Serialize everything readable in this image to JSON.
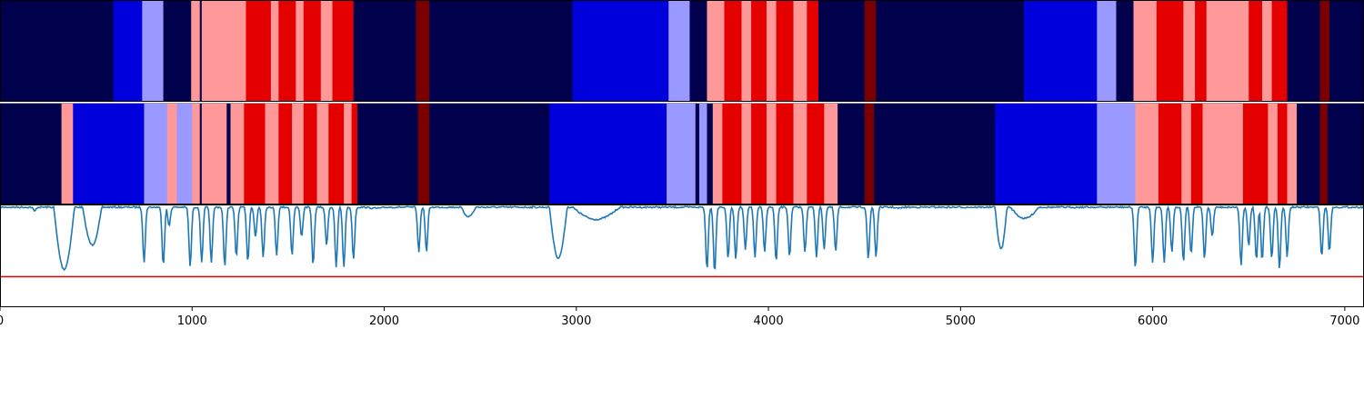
{
  "chart_data": [
    {
      "type": "heatmap",
      "name": "segmentation-track-top",
      "xlim": [
        0,
        7100
      ],
      "colors": {
        "navy": "#00004d",
        "blue": "#0000dd",
        "lightblue": "#9999ff",
        "pink": "#ff9999",
        "red": "#e50000",
        "darkred": "#7a0000"
      },
      "segments": [
        [
          0,
          590,
          "navy"
        ],
        [
          590,
          740,
          "blue"
        ],
        [
          740,
          850,
          "lightblue"
        ],
        [
          850,
          995,
          "navy"
        ],
        [
          995,
          1040,
          "pink"
        ],
        [
          1040,
          1050,
          "navy"
        ],
        [
          1050,
          1280,
          "pink"
        ],
        [
          1280,
          1410,
          "red"
        ],
        [
          1410,
          1450,
          "pink"
        ],
        [
          1450,
          1540,
          "red"
        ],
        [
          1540,
          1580,
          "pink"
        ],
        [
          1580,
          1670,
          "red"
        ],
        [
          1670,
          1730,
          "pink"
        ],
        [
          1730,
          1840,
          "red"
        ],
        [
          1840,
          2165,
          "navy"
        ],
        [
          2165,
          2235,
          "darkred"
        ],
        [
          2235,
          2980,
          "navy"
        ],
        [
          2980,
          3480,
          "blue"
        ],
        [
          3480,
          3590,
          "lightblue"
        ],
        [
          3590,
          3680,
          "navy"
        ],
        [
          3680,
          3770,
          "pink"
        ],
        [
          3770,
          3860,
          "red"
        ],
        [
          3860,
          3910,
          "pink"
        ],
        [
          3910,
          3990,
          "red"
        ],
        [
          3990,
          4040,
          "pink"
        ],
        [
          4040,
          4130,
          "red"
        ],
        [
          4130,
          4200,
          "pink"
        ],
        [
          4200,
          4260,
          "red"
        ],
        [
          4260,
          4500,
          "navy"
        ],
        [
          4500,
          4560,
          "darkred"
        ],
        [
          4560,
          5330,
          "navy"
        ],
        [
          5330,
          5710,
          "blue"
        ],
        [
          5710,
          5810,
          "lightblue"
        ],
        [
          5810,
          5900,
          "navy"
        ],
        [
          5900,
          6020,
          "pink"
        ],
        [
          6020,
          6160,
          "red"
        ],
        [
          6160,
          6220,
          "pink"
        ],
        [
          6220,
          6280,
          "red"
        ],
        [
          6280,
          6500,
          "pink"
        ],
        [
          6500,
          6570,
          "red"
        ],
        [
          6570,
          6620,
          "pink"
        ],
        [
          6620,
          6700,
          "red"
        ],
        [
          6700,
          6870,
          "navy"
        ],
        [
          6870,
          6920,
          "darkred"
        ],
        [
          6920,
          7100,
          "navy"
        ]
      ]
    },
    {
      "type": "heatmap",
      "name": "segmentation-track-middle",
      "xlim": [
        0,
        7100
      ],
      "segments": [
        [
          0,
          320,
          "navy"
        ],
        [
          320,
          380,
          "pink"
        ],
        [
          380,
          750,
          "blue"
        ],
        [
          750,
          870,
          "lightblue"
        ],
        [
          870,
          920,
          "pink"
        ],
        [
          920,
          1000,
          "lightblue"
        ],
        [
          1000,
          1040,
          "pink"
        ],
        [
          1040,
          1050,
          "navy"
        ],
        [
          1050,
          1180,
          "pink"
        ],
        [
          1180,
          1200,
          "navy"
        ],
        [
          1200,
          1270,
          "pink"
        ],
        [
          1270,
          1380,
          "red"
        ],
        [
          1380,
          1450,
          "pink"
        ],
        [
          1450,
          1520,
          "red"
        ],
        [
          1520,
          1580,
          "pink"
        ],
        [
          1580,
          1650,
          "red"
        ],
        [
          1650,
          1710,
          "pink"
        ],
        [
          1710,
          1790,
          "red"
        ],
        [
          1790,
          1830,
          "pink"
        ],
        [
          1830,
          1860,
          "red"
        ],
        [
          1860,
          2175,
          "navy"
        ],
        [
          2175,
          2235,
          "darkred"
        ],
        [
          2235,
          2860,
          "navy"
        ],
        [
          2860,
          3470,
          "blue"
        ],
        [
          3470,
          3620,
          "lightblue"
        ],
        [
          3620,
          3640,
          "navy"
        ],
        [
          3640,
          3680,
          "lightblue"
        ],
        [
          3680,
          3710,
          "navy"
        ],
        [
          3710,
          3760,
          "pink"
        ],
        [
          3760,
          3860,
          "red"
        ],
        [
          3860,
          3910,
          "pink"
        ],
        [
          3910,
          3990,
          "red"
        ],
        [
          3990,
          4040,
          "pink"
        ],
        [
          4040,
          4130,
          "red"
        ],
        [
          4130,
          4200,
          "pink"
        ],
        [
          4200,
          4290,
          "red"
        ],
        [
          4290,
          4360,
          "pink"
        ],
        [
          4360,
          4500,
          "navy"
        ],
        [
          4500,
          4550,
          "darkred"
        ],
        [
          4550,
          5180,
          "navy"
        ],
        [
          5180,
          5710,
          "blue"
        ],
        [
          5710,
          5910,
          "lightblue"
        ],
        [
          5910,
          6030,
          "pink"
        ],
        [
          6030,
          6150,
          "red"
        ],
        [
          6150,
          6200,
          "pink"
        ],
        [
          6200,
          6260,
          "red"
        ],
        [
          6260,
          6290,
          "pink"
        ],
        [
          6290,
          6470,
          "pink"
        ],
        [
          6470,
          6600,
          "red"
        ],
        [
          6600,
          6650,
          "pink"
        ],
        [
          6650,
          6700,
          "red"
        ],
        [
          6700,
          6750,
          "pink"
        ],
        [
          6750,
          6870,
          "navy"
        ],
        [
          6870,
          6910,
          "darkred"
        ],
        [
          6910,
          7100,
          "navy"
        ]
      ]
    },
    {
      "type": "line",
      "name": "signal-track",
      "xlim": [
        0,
        7100
      ],
      "ylim": [
        0,
        1
      ],
      "series_color": "#1f77b4",
      "threshold": 0.3,
      "threshold_color": "#e00000",
      "xticks": [
        "0",
        "1000",
        "2000",
        "3000",
        "4000",
        "5000",
        "6000",
        "7000"
      ],
      "xtick_values": [
        0,
        1000,
        2000,
        3000,
        4000,
        5000,
        6000,
        7000
      ],
      "baseline": 0.99,
      "broad_dips": [
        [
          280,
          420,
          0.38
        ],
        [
          430,
          560,
          0.62
        ],
        [
          2860,
          2980,
          0.49
        ],
        [
          2980,
          3300,
          0.87
        ],
        [
          4650,
          4720,
          0.98
        ],
        [
          5180,
          5260,
          0.58
        ],
        [
          5260,
          5450,
          0.88
        ],
        [
          1900,
          2050,
          0.98
        ],
        [
          2400,
          2500,
          0.9
        ]
      ],
      "spikes": [
        [
          180,
          0.95
        ],
        [
          750,
          0.45
        ],
        [
          850,
          0.42
        ],
        [
          880,
          0.8
        ],
        [
          990,
          0.4
        ],
        [
          1050,
          0.45
        ],
        [
          1100,
          0.45
        ],
        [
          1170,
          0.4
        ],
        [
          1230,
          0.5
        ],
        [
          1290,
          0.45
        ],
        [
          1330,
          0.7
        ],
        [
          1370,
          0.5
        ],
        [
          1440,
          0.52
        ],
        [
          1520,
          0.52
        ],
        [
          1570,
          0.7
        ],
        [
          1630,
          0.42
        ],
        [
          1700,
          0.62
        ],
        [
          1750,
          0.4
        ],
        [
          1790,
          0.4
        ],
        [
          1840,
          0.48
        ],
        [
          2180,
          0.55
        ],
        [
          2220,
          0.55
        ],
        [
          3680,
          0.38
        ],
        [
          3720,
          0.35
        ],
        [
          3790,
          0.48
        ],
        [
          3830,
          0.48
        ],
        [
          3880,
          0.57
        ],
        [
          3930,
          0.5
        ],
        [
          3980,
          0.55
        ],
        [
          4040,
          0.45
        ],
        [
          4110,
          0.5
        ],
        [
          4190,
          0.55
        ],
        [
          4250,
          0.5
        ],
        [
          4290,
          0.58
        ],
        [
          4350,
          0.55
        ],
        [
          4520,
          0.48
        ],
        [
          4560,
          0.5
        ],
        [
          5910,
          0.38
        ],
        [
          6000,
          0.45
        ],
        [
          6060,
          0.45
        ],
        [
          6100,
          0.55
        ],
        [
          6160,
          0.45
        ],
        [
          6200,
          0.52
        ],
        [
          6270,
          0.48
        ],
        [
          6310,
          0.7
        ],
        [
          6460,
          0.42
        ],
        [
          6500,
          0.6
        ],
        [
          6540,
          0.46
        ],
        [
          6570,
          0.46
        ],
        [
          6620,
          0.48
        ],
        [
          6660,
          0.38
        ],
        [
          6700,
          0.5
        ],
        [
          6880,
          0.5
        ],
        [
          6920,
          0.55
        ]
      ]
    }
  ]
}
